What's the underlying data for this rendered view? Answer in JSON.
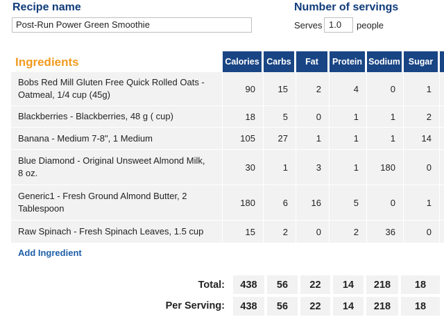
{
  "recipe": {
    "label": "Recipe name",
    "value": "Post-Run Power Green Smoothie"
  },
  "servings": {
    "label": "Number of servings",
    "serves_label": "Serves",
    "value": "1.0",
    "people_label": "people"
  },
  "ingredients": {
    "title": "Ingredients",
    "columns": [
      "Calories",
      "Carbs",
      "Fat",
      "Protein",
      "Sodium",
      "Sugar"
    ],
    "rows": [
      {
        "name": "Bobs Red Mill Gluten Free Quick Rolled Oats - Oatmeal, 1/4 cup (45g)",
        "values": [
          "90",
          "15",
          "2",
          "4",
          "0",
          "1"
        ]
      },
      {
        "name": "Blackberries - Blackberries, 48 g ( cup)",
        "values": [
          "18",
          "5",
          "0",
          "1",
          "1",
          "2"
        ]
      },
      {
        "name": "Banana - Medium 7-8\", 1 Medium",
        "values": [
          "105",
          "27",
          "1",
          "1",
          "1",
          "14"
        ]
      },
      {
        "name": "Blue Diamond - Original Unsweet Almond Milk, 8 oz.",
        "values": [
          "30",
          "1",
          "3",
          "1",
          "180",
          "0"
        ]
      },
      {
        "name": "Generic1 - Fresh Ground Almond Butter, 2 Tablespoon",
        "values": [
          "180",
          "6",
          "16",
          "5",
          "0",
          "1"
        ]
      },
      {
        "name": "Raw Spinach - Fresh Spinach Leaves, 1.5 cup",
        "values": [
          "15",
          "2",
          "0",
          "2",
          "36",
          "0"
        ]
      }
    ],
    "add_label": "Add Ingredient"
  },
  "totals": {
    "total_label": "Total:",
    "total_values": [
      "438",
      "56",
      "22",
      "14",
      "218",
      "18"
    ],
    "per_serving_label": "Per Serving:",
    "per_serving_values": [
      "438",
      "56",
      "22",
      "14",
      "218",
      "18"
    ]
  },
  "colors": {
    "header_bg": "#194584",
    "accent_orange": "#f29a1f",
    "link_blue": "#1f5fa8",
    "row_bg": "#f2f2f2"
  }
}
